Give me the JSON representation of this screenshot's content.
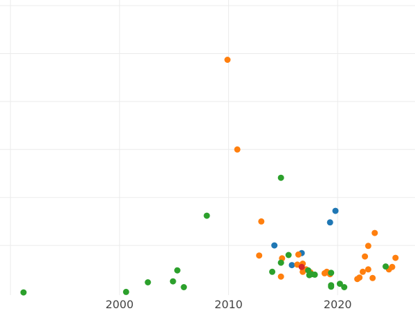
{
  "chart_data": {
    "type": "scatter",
    "title": "",
    "xlabel": "",
    "ylabel": "",
    "xlim": [
      1990,
      2027
    ],
    "ylim": [
      0,
      5.8
    ],
    "x_ticks": [
      2000,
      2010,
      2020
    ],
    "x_tick_labels": [
      "2000",
      "2010",
      "2020"
    ],
    "grid": true,
    "colors": {
      "blue": "#1f77b4",
      "orange": "#ff7f0e",
      "green": "#2ca02c",
      "red": "#d62728"
    },
    "series": [
      {
        "color": "#1f77b4",
        "points": [
          {
            "x": 2014.2,
            "y": 1.0
          },
          {
            "x": 2015.8,
            "y": 0.59
          },
          {
            "x": 2016.7,
            "y": 0.84
          },
          {
            "x": 2019.3,
            "y": 1.48
          },
          {
            "x": 2019.8,
            "y": 1.72
          }
        ]
      },
      {
        "color": "#ff7f0e",
        "points": [
          {
            "x": 2009.9,
            "y": 4.87
          },
          {
            "x": 2010.8,
            "y": 3.0
          },
          {
            "x": 2012.8,
            "y": 0.79
          },
          {
            "x": 2013.0,
            "y": 1.5
          },
          {
            "x": 2014.8,
            "y": 0.35
          },
          {
            "x": 2014.9,
            "y": 0.73
          },
          {
            "x": 2016.3,
            "y": 0.6
          },
          {
            "x": 2016.4,
            "y": 0.81
          },
          {
            "x": 2016.8,
            "y": 0.45
          },
          {
            "x": 2016.8,
            "y": 0.62
          },
          {
            "x": 2017.1,
            "y": 0.5
          },
          {
            "x": 2017.5,
            "y": 0.44
          },
          {
            "x": 2018.8,
            "y": 0.42
          },
          {
            "x": 2019.0,
            "y": 0.45
          },
          {
            "x": 2019.3,
            "y": 0.4
          },
          {
            "x": 2021.8,
            "y": 0.3
          },
          {
            "x": 2022.0,
            "y": 0.33
          },
          {
            "x": 2022.3,
            "y": 0.45
          },
          {
            "x": 2022.5,
            "y": 0.77
          },
          {
            "x": 2022.8,
            "y": 0.5
          },
          {
            "x": 2022.8,
            "y": 0.99
          },
          {
            "x": 2023.2,
            "y": 0.32
          },
          {
            "x": 2023.4,
            "y": 1.26
          },
          {
            "x": 2024.7,
            "y": 0.5
          },
          {
            "x": 2025.0,
            "y": 0.55
          },
          {
            "x": 2025.3,
            "y": 0.74
          }
        ]
      },
      {
        "color": "#2ca02c",
        "points": [
          {
            "x": 1991.2,
            "y": 0.02
          },
          {
            "x": 2000.6,
            "y": 0.03
          },
          {
            "x": 2002.6,
            "y": 0.23
          },
          {
            "x": 2004.9,
            "y": 0.25
          },
          {
            "x": 2005.3,
            "y": 0.48
          },
          {
            "x": 2005.9,
            "y": 0.13
          },
          {
            "x": 2008.0,
            "y": 1.62
          },
          {
            "x": 2014.0,
            "y": 0.45
          },
          {
            "x": 2014.8,
            "y": 0.64
          },
          {
            "x": 2014.8,
            "y": 2.41
          },
          {
            "x": 2015.5,
            "y": 0.8
          },
          {
            "x": 2017.3,
            "y": 0.48
          },
          {
            "x": 2017.4,
            "y": 0.38
          },
          {
            "x": 2017.6,
            "y": 0.4
          },
          {
            "x": 2017.9,
            "y": 0.39
          },
          {
            "x": 2019.4,
            "y": 0.43
          },
          {
            "x": 2019.4,
            "y": 0.17
          },
          {
            "x": 2019.4,
            "y": 0.14
          },
          {
            "x": 2020.2,
            "y": 0.2
          },
          {
            "x": 2020.6,
            "y": 0.13
          },
          {
            "x": 2024.4,
            "y": 0.56
          }
        ]
      },
      {
        "color": "#d62728",
        "points": [
          {
            "x": 2016.7,
            "y": 0.55
          }
        ]
      }
    ]
  }
}
